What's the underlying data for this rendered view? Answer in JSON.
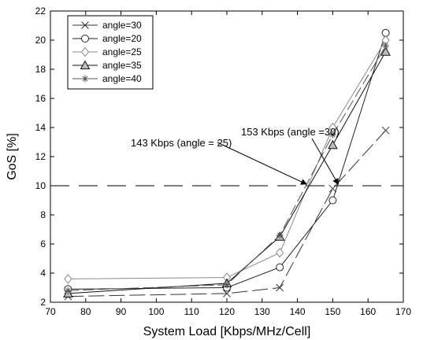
{
  "chart_data": {
    "type": "line",
    "xlabel": "System Load [Kbps/MHz/Cell]",
    "ylabel": "GoS [%]",
    "xlim": [
      70,
      170
    ],
    "ylim": [
      2,
      22
    ],
    "xticks": [
      70,
      80,
      90,
      100,
      110,
      120,
      130,
      140,
      150,
      160,
      170
    ],
    "yticks": [
      2,
      4,
      6,
      8,
      10,
      12,
      14,
      16,
      18,
      20,
      22
    ],
    "legend_position": "top-left",
    "grid": false,
    "x": [
      75,
      120,
      135,
      150,
      165
    ],
    "series": [
      {
        "name": "angle=30",
        "marker": "x",
        "color": "#333333",
        "values": [
          2.4,
          2.6,
          3.0,
          9.8,
          13.8
        ]
      },
      {
        "name": "angle=20",
        "marker": "circle",
        "color": "#222222",
        "values": [
          2.9,
          3.0,
          4.4,
          9.0,
          20.5
        ]
      },
      {
        "name": "angle=25",
        "marker": "diamond",
        "color": "#8a8a8a",
        "values": [
          3.6,
          3.7,
          5.4,
          14.0,
          20.0
        ]
      },
      {
        "name": "angle=35",
        "marker": "triangle",
        "color": "#111111",
        "values": [
          2.6,
          3.3,
          6.5,
          12.8,
          19.2
        ]
      },
      {
        "name": "angle=40",
        "marker": "star",
        "color": "#555555",
        "values": [
          2.8,
          3.2,
          6.6,
          13.5,
          19.6
        ]
      }
    ],
    "threshold": {
      "y": 10,
      "style": "dashed"
    },
    "annotations": [
      {
        "text": "143 Kbps (angle = 25)",
        "target": [
          143,
          10
        ]
      },
      {
        "text": "153 Kbps (angle =30)",
        "target": [
          152,
          10
        ]
      }
    ]
  }
}
